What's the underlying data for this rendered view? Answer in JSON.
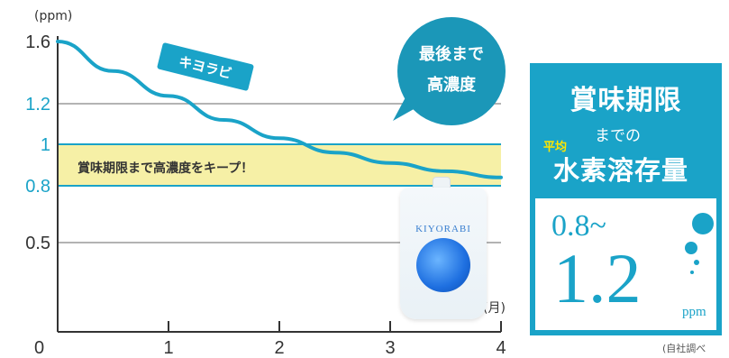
{
  "chart_data": {
    "type": "line",
    "unit_label": "(ppm)",
    "x_unit_label": "(月)",
    "x_origin_label": "0",
    "x_ticks": [
      "1",
      "2",
      "3",
      "4"
    ],
    "y_ticks": [
      "1.6",
      "1.2",
      "1",
      "0.8",
      "0.5"
    ],
    "xlim": [
      0,
      4
    ],
    "ylim": [
      0,
      1.6
    ],
    "series": [
      {
        "name": "キヨラビ",
        "color": "#1aa3c8",
        "x": [
          0,
          0.5,
          1,
          1.5,
          2,
          2.5,
          3,
          3.5,
          4
        ],
        "y": [
          1.6,
          1.41,
          1.25,
          1.12,
          1.03,
          0.96,
          0.91,
          0.87,
          0.84
        ]
      }
    ],
    "band": {
      "from": 0.8,
      "to": 1.0,
      "label": "賞味期限まで高濃度をキープ！",
      "color": "#f6f0a6"
    },
    "callout": {
      "line1": "最後まで",
      "line2": "高濃度"
    },
    "accent_color": "#1aa3c8"
  },
  "product": {
    "brand": "KIYORABI"
  },
  "panel": {
    "title": "賞味期限",
    "made": "までの",
    "avg": "平均",
    "heading": "水素溶存量",
    "range_low": "0.8~",
    "range_high": "1.2",
    "unit": "ppm"
  },
  "footnote": "(自社調べ"
}
